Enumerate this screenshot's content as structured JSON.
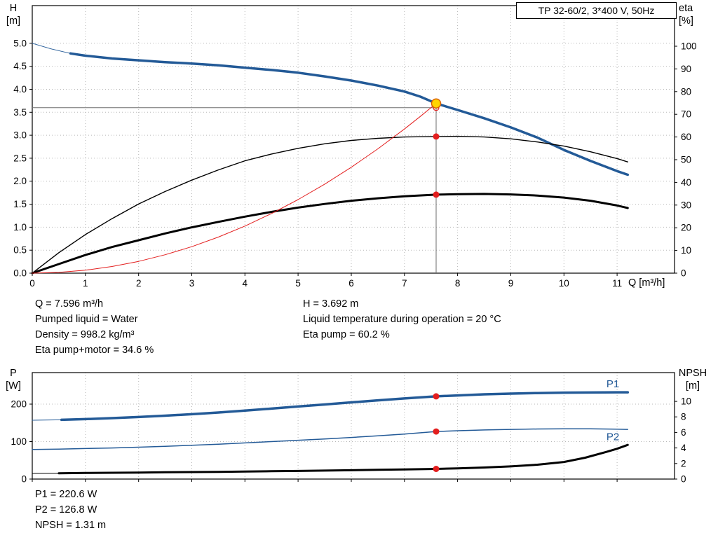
{
  "title_box": "TP 32-60/2, 3*400 V, 50Hz",
  "axes": {
    "top": {
      "left_title": "H",
      "left_unit": "[m]",
      "right_title": "eta",
      "right_unit": "[%]",
      "x_label": "Q [m³/h]"
    },
    "bottom": {
      "left_title": "P",
      "left_unit": "[W]",
      "right_title": "NPSH",
      "right_unit": "[m]"
    }
  },
  "readout": {
    "q": "Q = 7.596 m³/h",
    "pumped_liquid": "Pumped liquid = Water",
    "density": "Density = 998.2 kg/m³",
    "eta_pump_motor": "Eta pump+motor = 34.6 %",
    "h": "H = 3.692 m",
    "liquid_temp": "Liquid temperature during operation = 20 °C",
    "eta_pump": "Eta pump = 60.2 %",
    "p1": "P1 = 220.6 W",
    "p2": "P2 = 126.8 W",
    "npsh": "NPSH = 1.31 m"
  },
  "duty_point": {
    "q_m3h": 7.596,
    "h_m": 3.692,
    "eta_pump_pct": 60.2,
    "eta_pump_motor_pct": 34.6,
    "p1_w": 220.6,
    "p2_w": 126.8,
    "npsh_m": 1.31
  },
  "colors": {
    "curve_blue": "#235a97",
    "red": "#e31e1e",
    "duty_yellow": "#ffd500",
    "duty_ring": "#d95f00",
    "grid": "#b7b7b7",
    "crosshair": "#6e6e6e"
  },
  "chart_data": [
    {
      "type": "line",
      "name": "hq-eta-panel",
      "title": "TP 32-60/2, 3*400 V, 50Hz",
      "xlabel": "Q [m³/h]",
      "ylabel_left": "H [m]",
      "ylabel_right": "eta [%]",
      "x": {
        "min": 0,
        "max": 12.08,
        "show_labels": true,
        "ticks": [
          [
            0,
            "0"
          ],
          [
            1,
            "1"
          ],
          [
            2,
            "2"
          ],
          [
            3,
            "3"
          ],
          [
            4,
            "4"
          ],
          [
            5,
            "5"
          ],
          [
            6,
            "6"
          ],
          [
            7,
            "7"
          ],
          [
            8,
            "8"
          ],
          [
            9,
            "9"
          ],
          [
            10,
            "10"
          ],
          [
            11,
            "11"
          ]
        ]
      },
      "y_left": {
        "min": 0,
        "max": 5.82,
        "ticks": [
          [
            0,
            "0.0"
          ],
          [
            0.5,
            "0.5"
          ],
          [
            1,
            "1.0"
          ],
          [
            1.5,
            "1.5"
          ],
          [
            2,
            "2.0"
          ],
          [
            2.5,
            "2.5"
          ],
          [
            3,
            "3.0"
          ],
          [
            3.5,
            "3.5"
          ],
          [
            4,
            "4.0"
          ],
          [
            4.5,
            "4.5"
          ],
          [
            5,
            "5.0"
          ]
        ]
      },
      "y_right": {
        "min": 0,
        "max": 117.9,
        "ticks": [
          [
            0,
            "0"
          ],
          [
            10,
            "10"
          ],
          [
            20,
            "20"
          ],
          [
            30,
            "30"
          ],
          [
            40,
            "40"
          ],
          [
            50,
            "50"
          ],
          [
            60,
            "60"
          ],
          [
            70,
            "70"
          ],
          [
            80,
            "80"
          ],
          [
            90,
            "90"
          ],
          [
            100,
            "100"
          ]
        ]
      },
      "series": [
        {
          "name": "hq-lead",
          "axis": "left",
          "color": "#235a97",
          "width": 1,
          "points": [
            [
              0,
              5.0
            ],
            [
              0.35,
              4.88
            ],
            [
              0.72,
              4.78
            ]
          ]
        },
        {
          "name": "hq-curve",
          "axis": "left",
          "color": "#235a97",
          "width": 3.5,
          "points": [
            [
              0.72,
              4.78
            ],
            [
              1,
              4.73
            ],
            [
              1.5,
              4.67
            ],
            [
              2,
              4.63
            ],
            [
              2.5,
              4.59
            ],
            [
              3,
              4.56
            ],
            [
              3.5,
              4.52
            ],
            [
              4,
              4.47
            ],
            [
              4.5,
              4.42
            ],
            [
              5,
              4.36
            ],
            [
              5.5,
              4.28
            ],
            [
              6,
              4.19
            ],
            [
              6.5,
              4.08
            ],
            [
              7,
              3.95
            ],
            [
              7.3,
              3.84
            ],
            [
              7.596,
              3.692
            ],
            [
              8,
              3.55
            ],
            [
              8.5,
              3.37
            ],
            [
              9,
              3.17
            ],
            [
              9.5,
              2.95
            ],
            [
              10,
              2.68
            ],
            [
              10.5,
              2.44
            ],
            [
              11,
              2.22
            ],
            [
              11.2,
              2.14
            ]
          ]
        },
        {
          "name": "eta-pump",
          "axis": "right",
          "color": "#000000",
          "width": 1.4,
          "points": [
            [
              0,
              0
            ],
            [
              0.5,
              9
            ],
            [
              1,
              17
            ],
            [
              1.5,
              24
            ],
            [
              2,
              30.5
            ],
            [
              2.5,
              36
            ],
            [
              3,
              41
            ],
            [
              3.5,
              45.5
            ],
            [
              4,
              49.5
            ],
            [
              4.5,
              52.5
            ],
            [
              5,
              55
            ],
            [
              5.5,
              57
            ],
            [
              6,
              58.5
            ],
            [
              6.5,
              59.4
            ],
            [
              7,
              60
            ],
            [
              7.596,
              60.2
            ],
            [
              8,
              60.3
            ],
            [
              8.5,
              60
            ],
            [
              9,
              59.2
            ],
            [
              9.5,
              57.8
            ],
            [
              10,
              56
            ],
            [
              10.5,
              53.5
            ],
            [
              11,
              50.5
            ],
            [
              11.2,
              49
            ]
          ]
        },
        {
          "name": "eta-pump-motor",
          "axis": "right",
          "color": "#000000",
          "width": 3,
          "points": [
            [
              0,
              0
            ],
            [
              0.5,
              4
            ],
            [
              1,
              8
            ],
            [
              1.5,
              11.5
            ],
            [
              2,
              14.5
            ],
            [
              2.5,
              17.5
            ],
            [
              3,
              20.2
            ],
            [
              3.5,
              22.6
            ],
            [
              4,
              24.9
            ],
            [
              4.5,
              27
            ],
            [
              5,
              28.9
            ],
            [
              5.5,
              30.5
            ],
            [
              6,
              31.9
            ],
            [
              6.5,
              33
            ],
            [
              7,
              33.9
            ],
            [
              7.596,
              34.6
            ],
            [
              8,
              34.8
            ],
            [
              8.5,
              34.9
            ],
            [
              9,
              34.7
            ],
            [
              9.5,
              34.2
            ],
            [
              10,
              33.3
            ],
            [
              10.5,
              31.9
            ],
            [
              11,
              29.8
            ],
            [
              11.2,
              28.7
            ]
          ]
        },
        {
          "name": "system-curve",
          "axis": "left",
          "color": "#e31e1e",
          "width": 1,
          "points": [
            [
              0,
              0
            ],
            [
              0.5,
              0.016
            ],
            [
              1,
              0.064
            ],
            [
              1.5,
              0.144
            ],
            [
              2,
              0.256
            ],
            [
              2.5,
              0.4
            ],
            [
              3,
              0.576
            ],
            [
              3.5,
              0.784
            ],
            [
              4,
              1.024
            ],
            [
              4.5,
              1.296
            ],
            [
              5,
              1.6
            ],
            [
              5.5,
              1.936
            ],
            [
              6,
              2.304
            ],
            [
              6.5,
              2.704
            ],
            [
              7,
              3.136
            ],
            [
              7.3,
              3.41
            ],
            [
              7.596,
              3.692
            ]
          ]
        }
      ],
      "crosshair": {
        "q": 7.596,
        "v_top": 3.692,
        "h_line": 3.6
      },
      "markers": [
        {
          "type": "open",
          "q": 7.596,
          "v": 3.6,
          "axis": "left"
        },
        {
          "type": "dot",
          "q": 7.596,
          "v": 60.2,
          "axis": "right"
        },
        {
          "type": "dot",
          "q": 7.596,
          "v": 34.6,
          "axis": "right"
        },
        {
          "type": "duty",
          "q": 7.596,
          "v": 3.692,
          "axis": "left"
        }
      ]
    },
    {
      "type": "line",
      "name": "power-npsh-panel",
      "xlabel": "Q [m³/h]",
      "ylabel_left": "P [W]",
      "ylabel_right": "NPSH [m]",
      "x": {
        "min": 0,
        "max": 12.08,
        "show_labels": false,
        "ticks": [
          [
            0,
            ""
          ],
          [
            1,
            ""
          ],
          [
            2,
            ""
          ],
          [
            3,
            ""
          ],
          [
            4,
            ""
          ],
          [
            5,
            ""
          ],
          [
            6,
            ""
          ],
          [
            7,
            ""
          ],
          [
            8,
            ""
          ],
          [
            9,
            ""
          ],
          [
            10,
            ""
          ],
          [
            11,
            ""
          ]
        ]
      },
      "y_left": {
        "min": 0,
        "max": 284,
        "ticks": [
          [
            0,
            "0"
          ],
          [
            100,
            "100"
          ],
          [
            200,
            "200"
          ]
        ]
      },
      "y_right": {
        "min": 0,
        "max": 13.7,
        "ticks": [
          [
            0,
            "0"
          ],
          [
            2,
            "2"
          ],
          [
            4,
            "4"
          ],
          [
            6,
            "6"
          ],
          [
            8,
            "8"
          ],
          [
            10,
            "10"
          ]
        ]
      },
      "series": [
        {
          "name": "p1-lead",
          "axis": "left",
          "color": "#235a97",
          "width": 1,
          "points": [
            [
              0,
              157
            ],
            [
              0.55,
              158
            ]
          ]
        },
        {
          "name": "p1-curve",
          "axis": "left",
          "color": "#235a97",
          "width": 3.5,
          "label": {
            "text": "P1",
            "q": 10.8,
            "v": 245
          },
          "points": [
            [
              0.55,
              158
            ],
            [
              1,
              160
            ],
            [
              1.5,
              162.5
            ],
            [
              2,
              165.5
            ],
            [
              2.5,
              169
            ],
            [
              3,
              173
            ],
            [
              3.5,
              177.5
            ],
            [
              4,
              182.5
            ],
            [
              4.5,
              188
            ],
            [
              5,
              193.5
            ],
            [
              5.5,
              199
            ],
            [
              6,
              204.5
            ],
            [
              6.5,
              210
            ],
            [
              7,
              215
            ],
            [
              7.596,
              220.6
            ],
            [
              8,
              223
            ],
            [
              8.5,
              226
            ],
            [
              9,
              228
            ],
            [
              9.5,
              229.5
            ],
            [
              10,
              230.5
            ],
            [
              10.5,
              231
            ],
            [
              11,
              231.5
            ],
            [
              11.2,
              231.5
            ]
          ]
        },
        {
          "name": "p2-curve",
          "axis": "left",
          "color": "#235a97",
          "width": 1.5,
          "label": {
            "text": "P2",
            "q": 10.8,
            "v": 104
          },
          "points": [
            [
              0,
              79
            ],
            [
              0.5,
              80
            ],
            [
              1,
              81.5
            ],
            [
              1.5,
              83
            ],
            [
              2,
              85
            ],
            [
              2.5,
              87.5
            ],
            [
              3,
              90
            ],
            [
              3.5,
              93
            ],
            [
              4,
              96.5
            ],
            [
              4.5,
              100
            ],
            [
              5,
              103.5
            ],
            [
              5.5,
              107
            ],
            [
              6,
              111
            ],
            [
              6.5,
              115.5
            ],
            [
              7,
              120
            ],
            [
              7.596,
              126.8
            ],
            [
              8,
              129
            ],
            [
              8.5,
              131
            ],
            [
              9,
              132.5
            ],
            [
              9.5,
              133.5
            ],
            [
              10,
              134
            ],
            [
              10.5,
              134
            ],
            [
              11,
              133
            ],
            [
              11.2,
              132.5
            ]
          ]
        },
        {
          "name": "npsh-lead",
          "axis": "right",
          "color": "#000000",
          "width": 1,
          "points": [
            [
              0,
              0.73
            ],
            [
              0.5,
              0.75
            ]
          ]
        },
        {
          "name": "npsh-curve",
          "axis": "right",
          "color": "#000000",
          "width": 3,
          "points": [
            [
              0.5,
              0.75
            ],
            [
              1,
              0.78
            ],
            [
              1.5,
              0.81
            ],
            [
              2,
              0.84
            ],
            [
              2.5,
              0.87
            ],
            [
              3,
              0.9
            ],
            [
              3.5,
              0.93
            ],
            [
              4,
              0.97
            ],
            [
              4.5,
              1.01
            ],
            [
              5,
              1.05
            ],
            [
              5.5,
              1.09
            ],
            [
              6,
              1.14
            ],
            [
              6.5,
              1.19
            ],
            [
              7,
              1.24
            ],
            [
              7.596,
              1.31
            ],
            [
              8,
              1.38
            ],
            [
              8.5,
              1.49
            ],
            [
              9,
              1.63
            ],
            [
              9.5,
              1.85
            ],
            [
              10,
              2.2
            ],
            [
              10.4,
              2.75
            ],
            [
              10.8,
              3.5
            ],
            [
              11,
              3.9
            ],
            [
              11.2,
              4.4
            ]
          ]
        }
      ],
      "markers": [
        {
          "type": "dot",
          "q": 7.596,
          "v": 220.6,
          "axis": "left"
        },
        {
          "type": "dot",
          "q": 7.596,
          "v": 126.8,
          "axis": "left"
        },
        {
          "type": "dot",
          "q": 7.596,
          "v": 1.31,
          "axis": "right"
        }
      ]
    }
  ]
}
